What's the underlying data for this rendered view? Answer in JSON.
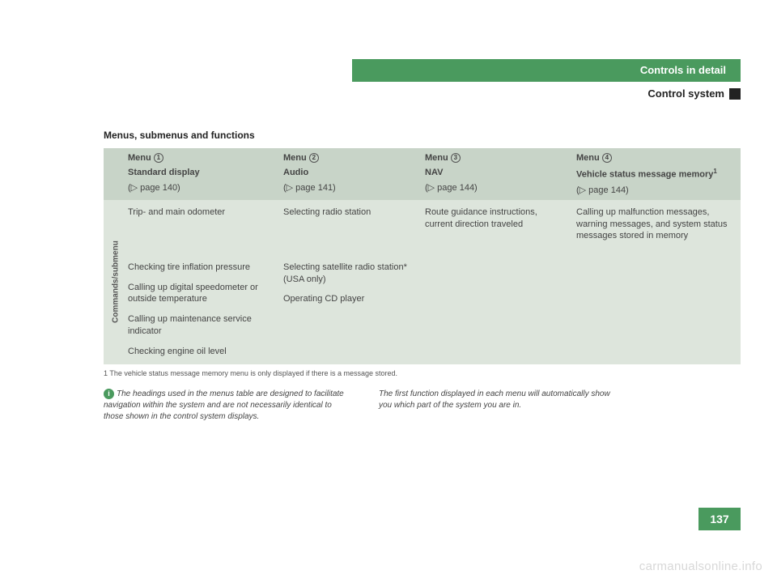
{
  "header": {
    "chapter": "Controls in detail",
    "section": "Control system"
  },
  "section_title": "Menus, submenus and functions",
  "columns": [
    {
      "menu": "Menu",
      "num": "1",
      "sub": "Standard display",
      "page": "(▷ page 140)"
    },
    {
      "menu": "Menu",
      "num": "2",
      "sub": "Audio",
      "page": "(▷ page 141)"
    },
    {
      "menu": "Menu",
      "num": "3",
      "sub": "NAV",
      "page": "(▷ page 144)"
    },
    {
      "menu": "Menu",
      "num": "4",
      "sub": "Vehicle status message memory",
      "sup": "1",
      "page": "(▷ page 144)"
    }
  ],
  "side_label": "Commands/submenu",
  "body": {
    "c1": [
      "Trip- and main odometer",
      "Checking tire inflation pressure",
      "Calling up digital speedometer or outside temperature",
      "Calling up maintenance service indicator",
      "Checking engine oil level"
    ],
    "c2": [
      "Selecting radio station",
      "Selecting satellite radio station* (USA only)",
      "Operating CD player"
    ],
    "c3": [
      "Route guidance instructions, current direction traveled"
    ],
    "c4": [
      "Calling up malfunction messages, warning messages, and system status messages stored in memory"
    ]
  },
  "footnote": "1  The vehicle status message memory menu is only displayed if there is a message stored.",
  "notes": {
    "n1": "The headings used in the menus table are designed to facilitate navigation within the system and are not necessarily identical to those shown in the control system displays.",
    "n2": "The first function displayed in each menu will automatically show you which part of the system you are in."
  },
  "page_number": "137",
  "watermark": "carmanualsonline.info",
  "colors": {
    "brand_green": "#4a9a5e",
    "table_head_bg": "#c8d4c8",
    "table_body_bg": "#dde5dc",
    "text": "#444444",
    "watermark": "#d8d8d8"
  }
}
